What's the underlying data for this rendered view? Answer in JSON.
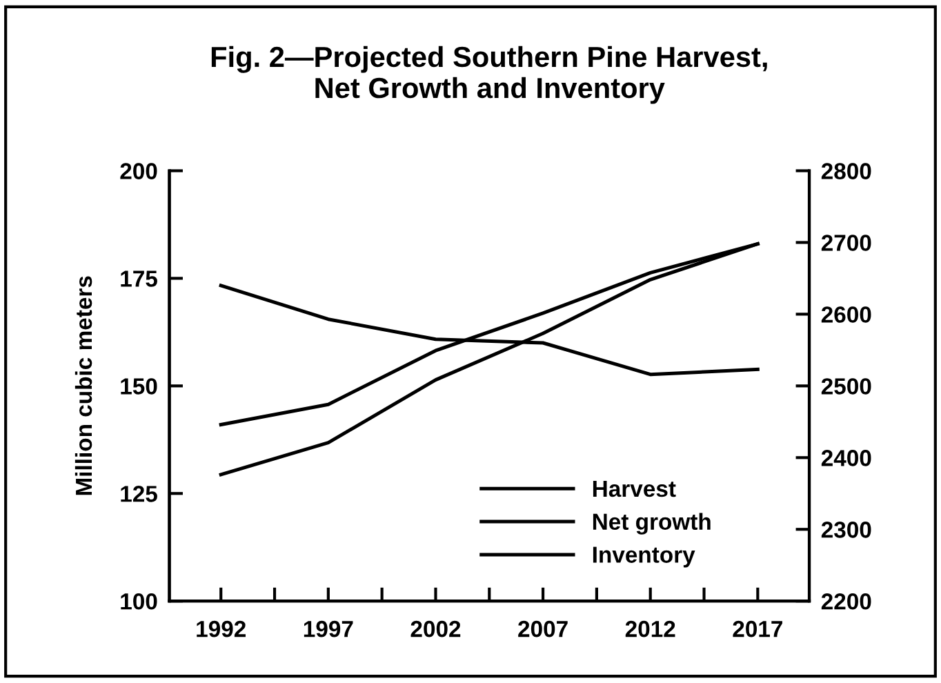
{
  "chart_data": {
    "type": "line",
    "title": "Fig. 2—Projected Southern Pine Harvest,\nNet Growth and Inventory",
    "ylabel": "Million cubic meters",
    "x": [
      1992,
      1997,
      2002,
      2007,
      2012,
      2017
    ],
    "series": [
      {
        "name": "Harvest",
        "color": "#000000",
        "values": [
          141.0,
          145.7,
          158.2,
          166.9,
          176.3,
          183.0
        ]
      },
      {
        "name": "Net growth",
        "color": "#000000",
        "values": [
          129.4,
          136.8,
          151.4,
          162.2,
          174.7,
          183.0
        ]
      },
      {
        "name": "Inventory",
        "color": "#000000",
        "axis": "y2",
        "values": [
          2640,
          2593,
          2565,
          2560,
          2516,
          2523
        ]
      }
    ],
    "xlim": [
      1989.6,
      2019.4
    ],
    "xticks": [
      1992,
      {
        "value": 1994.5,
        "label": null
      },
      1997,
      {
        "value": 1999.5,
        "label": null
      },
      2002,
      {
        "value": 2004.5,
        "label": null
      },
      2007,
      {
        "value": 2009.5,
        "label": null
      },
      2012,
      {
        "value": 2014.5,
        "label": null
      },
      2017
    ],
    "ylim": [
      100,
      200
    ],
    "yticks": [
      100,
      125,
      150,
      175,
      200
    ],
    "y2lim": [
      2200,
      2800
    ],
    "y2ticks": [
      2200,
      2300,
      2400,
      2500,
      2600,
      2700,
      2800
    ],
    "legend": "bottom right",
    "grid": false,
    "marker": "none",
    "line_style": "solid"
  }
}
